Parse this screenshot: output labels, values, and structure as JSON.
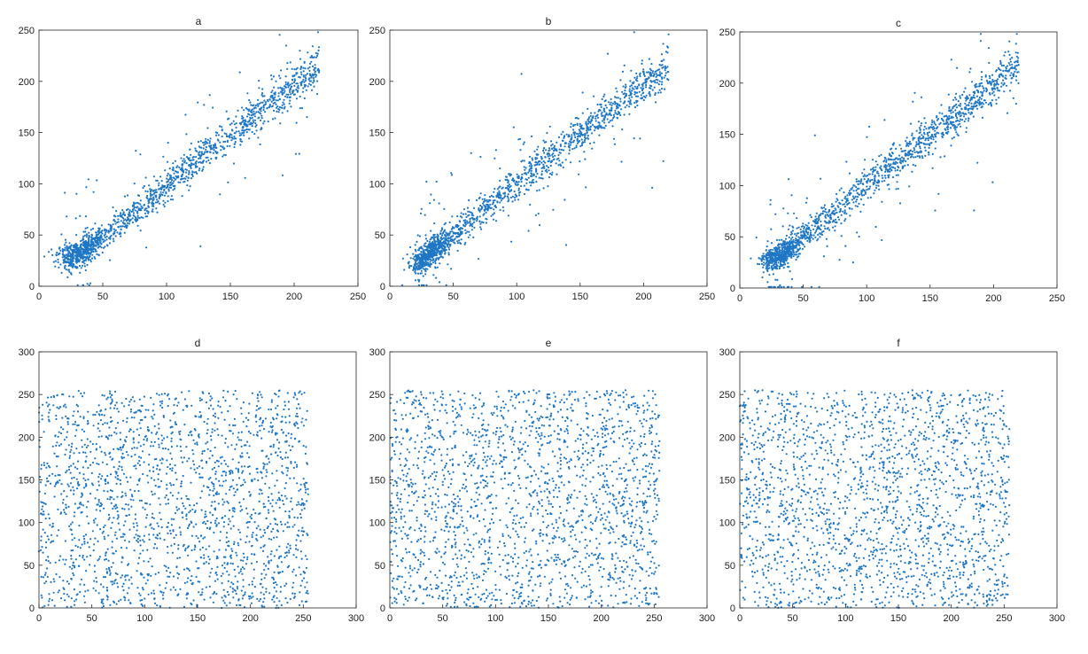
{
  "colors": {
    "points": "#1f77c4",
    "axes": "#262626",
    "background": "#ffffff"
  },
  "chart_data": [
    {
      "panel": "a",
      "type": "scatter",
      "title": "a",
      "xlim": [
        0,
        250
      ],
      "ylim": [
        0,
        250
      ],
      "xticks": [
        0,
        50,
        100,
        150,
        200,
        250
      ],
      "yticks": [
        0,
        50,
        100,
        150,
        200,
        250
      ],
      "pattern": "correlated",
      "point_count": 1600,
      "seed": 11,
      "series": [
        {
          "x": [
            25,
            35,
            50,
            75,
            100,
            125,
            150,
            175,
            200,
            215
          ],
          "y": [
            28,
            34,
            48,
            72,
            98,
            125,
            148,
            172,
            198,
            212
          ]
        }
      ]
    },
    {
      "panel": "b",
      "type": "scatter",
      "title": "b",
      "xlim": [
        0,
        250
      ],
      "ylim": [
        0,
        250
      ],
      "xticks": [
        0,
        50,
        100,
        150,
        200,
        250
      ],
      "yticks": [
        0,
        50,
        100,
        150,
        200,
        250
      ],
      "pattern": "correlated",
      "point_count": 1600,
      "seed": 23,
      "series": [
        {
          "x": [
            22,
            30,
            50,
            75,
            100,
            125,
            150,
            175,
            200,
            218
          ],
          "y": [
            24,
            30,
            50,
            75,
            100,
            125,
            148,
            172,
            196,
            214
          ]
        }
      ]
    },
    {
      "panel": "c",
      "type": "scatter",
      "title": "c",
      "xlim": [
        0,
        250
      ],
      "ylim": [
        0,
        250
      ],
      "xticks": [
        0,
        50,
        100,
        150,
        200,
        250
      ],
      "yticks": [
        0,
        50,
        100,
        150,
        200,
        250
      ],
      "pattern": "correlated",
      "point_count": 1600,
      "seed": 37,
      "series": [
        {
          "x": [
            25,
            35,
            50,
            75,
            100,
            125,
            150,
            175,
            200,
            215
          ],
          "y": [
            28,
            33,
            50,
            74,
            102,
            126,
            150,
            174,
            198,
            215
          ]
        }
      ]
    },
    {
      "panel": "d",
      "type": "scatter",
      "title": "d",
      "xlim": [
        0,
        300
      ],
      "ylim": [
        0,
        300
      ],
      "xticks": [
        0,
        50,
        100,
        150,
        200,
        250,
        300
      ],
      "yticks": [
        0,
        50,
        100,
        150,
        200,
        250,
        300
      ],
      "pattern": "uniform",
      "point_count": 2000,
      "seed": 41,
      "series": [
        {
          "x_range": [
            0,
            255
          ],
          "y_range": [
            0,
            255
          ]
        }
      ]
    },
    {
      "panel": "e",
      "type": "scatter",
      "title": "e",
      "xlim": [
        0,
        300
      ],
      "ylim": [
        0,
        300
      ],
      "xticks": [
        0,
        50,
        100,
        150,
        200,
        250,
        300
      ],
      "yticks": [
        0,
        50,
        100,
        150,
        200,
        250,
        300
      ],
      "pattern": "uniform",
      "point_count": 2000,
      "seed": 53,
      "series": [
        {
          "x_range": [
            0,
            255
          ],
          "y_range": [
            0,
            255
          ]
        }
      ]
    },
    {
      "panel": "f",
      "type": "scatter",
      "title": "f",
      "xlim": [
        0,
        300
      ],
      "ylim": [
        0,
        300
      ],
      "xticks": [
        0,
        50,
        100,
        150,
        200,
        250,
        300
      ],
      "yticks": [
        0,
        50,
        100,
        150,
        200,
        250,
        300
      ],
      "pattern": "uniform",
      "point_count": 2000,
      "seed": 67,
      "series": [
        {
          "x_range": [
            0,
            255
          ],
          "y_range": [
            0,
            255
          ]
        }
      ]
    }
  ]
}
